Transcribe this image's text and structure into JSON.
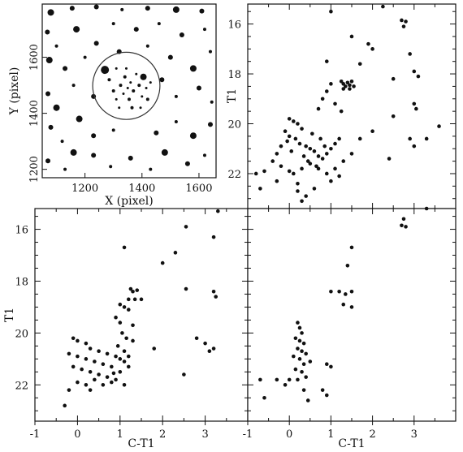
{
  "chart_data": [
    {
      "panel": "field-image",
      "type": "scatter",
      "xlabel": "X (pixel)",
      "ylabel": "Y (pixel)",
      "xlim": [
        1050,
        1660
      ],
      "ylim": [
        1170,
        1790
      ],
      "xticks": [
        "1200",
        "1400",
        "1600"
      ],
      "yticks": [
        "1200",
        "1400",
        "1600"
      ],
      "cluster_circle": {
        "center_x": 1345,
        "center_y": 1498,
        "radius": 118
      },
      "stars": [
        [
          1080,
          1760,
          4
        ],
        [
          1155,
          1775,
          3
        ],
        [
          1240,
          1780,
          3
        ],
        [
          1330,
          1770,
          2
        ],
        [
          1420,
          1775,
          3
        ],
        [
          1520,
          1770,
          4
        ],
        [
          1610,
          1765,
          3
        ],
        [
          1068,
          1690,
          3
        ],
        [
          1100,
          1640,
          2
        ],
        [
          1170,
          1700,
          4
        ],
        [
          1240,
          1650,
          3
        ],
        [
          1300,
          1720,
          2
        ],
        [
          1380,
          1700,
          3
        ],
        [
          1460,
          1720,
          2
        ],
        [
          1540,
          1680,
          3
        ],
        [
          1620,
          1700,
          2
        ],
        [
          1075,
          1590,
          4
        ],
        [
          1130,
          1560,
          3
        ],
        [
          1200,
          1600,
          2
        ],
        [
          1320,
          1620,
          3
        ],
        [
          1420,
          1640,
          2
        ],
        [
          1500,
          1600,
          3
        ],
        [
          1580,
          1560,
          4
        ],
        [
          1640,
          1620,
          2
        ],
        [
          1070,
          1470,
          3
        ],
        [
          1100,
          1420,
          4
        ],
        [
          1160,
          1500,
          2
        ],
        [
          1230,
          1460,
          3
        ],
        [
          1270,
          1555,
          5
        ],
        [
          1470,
          1520,
          3
        ],
        [
          1520,
          1460,
          2
        ],
        [
          1600,
          1490,
          3
        ],
        [
          1645,
          1440,
          2
        ],
        [
          1080,
          1350,
          3
        ],
        [
          1120,
          1300,
          2
        ],
        [
          1180,
          1380,
          4
        ],
        [
          1230,
          1320,
          3
        ],
        [
          1300,
          1340,
          2
        ],
        [
          1450,
          1330,
          3
        ],
        [
          1520,
          1370,
          2
        ],
        [
          1580,
          1320,
          4
        ],
        [
          1640,
          1360,
          3
        ],
        [
          1070,
          1230,
          3
        ],
        [
          1130,
          1200,
          2
        ],
        [
          1160,
          1260,
          4
        ],
        [
          1230,
          1250,
          3
        ],
        [
          1290,
          1210,
          2
        ],
        [
          1360,
          1240,
          3
        ],
        [
          1430,
          1200,
          2
        ],
        [
          1480,
          1260,
          4
        ],
        [
          1560,
          1220,
          3
        ],
        [
          1620,
          1250,
          2
        ],
        [
          1285,
          1520,
          2
        ],
        [
          1300,
          1480,
          2
        ],
        [
          1310,
          1450,
          1.5
        ],
        [
          1325,
          1500,
          2
        ],
        [
          1335,
          1470,
          1.5
        ],
        [
          1340,
          1530,
          2
        ],
        [
          1350,
          1490,
          1.5
        ],
        [
          1355,
          1450,
          2
        ],
        [
          1360,
          1510,
          1.5
        ],
        [
          1370,
          1480,
          2
        ],
        [
          1380,
          1540,
          1.5
        ],
        [
          1390,
          1500,
          2
        ],
        [
          1400,
          1460,
          1.5
        ],
        [
          1405,
          1530,
          4
        ],
        [
          1415,
          1490,
          1.5
        ],
        [
          1420,
          1450,
          2
        ],
        [
          1430,
          1510,
          1.5
        ],
        [
          1320,
          1420,
          1.5
        ],
        [
          1365,
          1420,
          2
        ],
        [
          1395,
          1420,
          1.5
        ],
        [
          1345,
          1560,
          1.5
        ],
        [
          1310,
          1560,
          1.5
        ]
      ]
    },
    {
      "panel": "cmd-full",
      "type": "scatter",
      "xlim": [
        -1,
        4
      ],
      "ylim": [
        23.4,
        15.2
      ],
      "xlabel": "",
      "ylabel": "T1",
      "yticks": [
        "16",
        "18",
        "20",
        "22"
      ],
      "points": [
        [
          2.25,
          15.3
        ],
        [
          1.0,
          15.5
        ],
        [
          2.8,
          15.9
        ],
        [
          2.7,
          15.85
        ],
        [
          2.75,
          16.1
        ],
        [
          1.5,
          16.5
        ],
        [
          1.9,
          16.8
        ],
        [
          2.0,
          17.0
        ],
        [
          2.9,
          17.2
        ],
        [
          0.9,
          17.5
        ],
        [
          1.7,
          17.6
        ],
        [
          3.0,
          17.9
        ],
        [
          3.1,
          18.1
        ],
        [
          2.5,
          18.2
        ],
        [
          1.25,
          18.3
        ],
        [
          1.3,
          18.4
        ],
        [
          1.35,
          18.5
        ],
        [
          1.4,
          18.35
        ],
        [
          1.45,
          18.45
        ],
        [
          1.5,
          18.3
        ],
        [
          1.55,
          18.5
        ],
        [
          1.3,
          18.6
        ],
        [
          1.45,
          18.6
        ],
        [
          1.0,
          18.4
        ],
        [
          0.9,
          18.7
        ],
        [
          0.8,
          19.0
        ],
        [
          1.1,
          19.2
        ],
        [
          0.7,
          19.4
        ],
        [
          1.25,
          19.5
        ],
        [
          3.0,
          19.2
        ],
        [
          3.05,
          19.4
        ],
        [
          2.5,
          19.7
        ],
        [
          3.6,
          20.1
        ],
        [
          0.0,
          19.8
        ],
        [
          0.1,
          19.9
        ],
        [
          0.2,
          20.0
        ],
        [
          0.3,
          20.2
        ],
        [
          -0.1,
          20.3
        ],
        [
          0.0,
          20.5
        ],
        [
          0.15,
          20.6
        ],
        [
          0.25,
          20.8
        ],
        [
          0.4,
          20.9
        ],
        [
          0.5,
          21.0
        ],
        [
          0.6,
          21.1
        ],
        [
          0.7,
          21.3
        ],
        [
          0.8,
          21.4
        ],
        [
          0.9,
          21.2
        ],
        [
          1.0,
          21.0
        ],
        [
          1.1,
          20.8
        ],
        [
          1.2,
          20.6
        ],
        [
          -0.2,
          20.9
        ],
        [
          -0.3,
          21.2
        ],
        [
          -0.4,
          21.5
        ],
        [
          -0.2,
          21.7
        ],
        [
          0.0,
          21.9
        ],
        [
          0.1,
          22.0
        ],
        [
          0.3,
          21.8
        ],
        [
          0.5,
          21.6
        ],
        [
          0.7,
          21.8
        ],
        [
          0.9,
          22.0
        ],
        [
          1.1,
          21.8
        ],
        [
          1.3,
          21.5
        ],
        [
          -0.6,
          21.9
        ],
        [
          -0.8,
          22.0
        ],
        [
          -0.7,
          22.6
        ],
        [
          0.2,
          22.4
        ],
        [
          0.6,
          22.6
        ],
        [
          1.0,
          22.3
        ],
        [
          0.3,
          23.1
        ],
        [
          0.4,
          22.9
        ],
        [
          1.5,
          21.2
        ],
        [
          1.7,
          20.6
        ],
        [
          2.0,
          20.3
        ],
        [
          2.4,
          21.4
        ],
        [
          2.9,
          20.6
        ],
        [
          3.0,
          20.9
        ],
        [
          3.3,
          20.6
        ],
        [
          0.55,
          20.4
        ],
        [
          0.75,
          20.6
        ],
        [
          0.35,
          21.3
        ],
        [
          0.45,
          21.5
        ],
        [
          0.05,
          21.1
        ],
        [
          -0.05,
          20.7
        ],
        [
          0.65,
          21.7
        ],
        [
          0.85,
          20.9
        ],
        [
          1.2,
          22.1
        ],
        [
          0.2,
          22.7
        ],
        [
          -0.3,
          22.3
        ]
      ]
    },
    {
      "panel": "cmd-cluster",
      "type": "scatter",
      "xlim": [
        -1,
        4
      ],
      "ylim": [
        23.4,
        15.2
      ],
      "xlabel": "C-T1",
      "ylabel": "T1",
      "xticks": [
        "-1",
        "0",
        "1",
        "2",
        "3"
      ],
      "yticks": [
        "16",
        "18",
        "20",
        "22"
      ],
      "points": [
        [
          3.3,
          15.3
        ],
        [
          2.55,
          15.9
        ],
        [
          3.2,
          16.3
        ],
        [
          1.1,
          16.7
        ],
        [
          2.3,
          16.9
        ],
        [
          2.0,
          17.3
        ],
        [
          2.55,
          18.3
        ],
        [
          3.2,
          18.4
        ],
        [
          3.25,
          18.6
        ],
        [
          1.25,
          18.3
        ],
        [
          1.3,
          18.4
        ],
        [
          1.4,
          18.35
        ],
        [
          1.5,
          18.7
        ],
        [
          1.35,
          18.7
        ],
        [
          1.2,
          18.7
        ],
        [
          1.0,
          18.9
        ],
        [
          1.1,
          19.0
        ],
        [
          1.2,
          19.1
        ],
        [
          0.9,
          19.4
        ],
        [
          1.0,
          19.6
        ],
        [
          1.3,
          19.7
        ],
        [
          1.05,
          20.0
        ],
        [
          1.15,
          20.2
        ],
        [
          1.3,
          20.3
        ],
        [
          0.95,
          20.5
        ],
        [
          1.1,
          20.7
        ],
        [
          1.2,
          20.9
        ],
        [
          -0.1,
          20.2
        ],
        [
          0.0,
          20.3
        ],
        [
          0.2,
          20.4
        ],
        [
          0.3,
          20.6
        ],
        [
          0.5,
          20.7
        ],
        [
          0.7,
          20.8
        ],
        [
          0.9,
          20.9
        ],
        [
          1.0,
          21.0
        ],
        [
          1.1,
          21.1
        ],
        [
          1.2,
          21.3
        ],
        [
          -0.2,
          20.8
        ],
        [
          0.0,
          20.9
        ],
        [
          0.2,
          21.0
        ],
        [
          0.4,
          21.1
        ],
        [
          0.6,
          21.2
        ],
        [
          0.8,
          21.3
        ],
        [
          1.0,
          21.5
        ],
        [
          -0.1,
          21.3
        ],
        [
          0.1,
          21.4
        ],
        [
          0.3,
          21.5
        ],
        [
          0.5,
          21.6
        ],
        [
          0.7,
          21.7
        ],
        [
          0.9,
          21.8
        ],
        [
          0.0,
          21.9
        ],
        [
          0.2,
          22.0
        ],
        [
          0.4,
          21.8
        ],
        [
          0.6,
          22.0
        ],
        [
          0.8,
          21.9
        ],
        [
          -0.2,
          22.2
        ],
        [
          0.3,
          22.2
        ],
        [
          1.1,
          22.0
        ],
        [
          -0.3,
          22.8
        ],
        [
          0.85,
          21.55
        ],
        [
          2.8,
          20.2
        ],
        [
          3.0,
          20.4
        ],
        [
          3.1,
          20.7
        ],
        [
          3.2,
          20.6
        ],
        [
          2.5,
          21.6
        ],
        [
          1.8,
          20.6
        ]
      ]
    },
    {
      "panel": "cmd-field",
      "type": "scatter",
      "xlim": [
        -1,
        4
      ],
      "ylim": [
        23.4,
        15.2
      ],
      "xlabel": "C-T1",
      "ylabel": "",
      "xticks": [
        "-1",
        "0",
        "1",
        "2",
        "3"
      ],
      "points": [
        [
          2.75,
          15.6
        ],
        [
          2.7,
          15.85
        ],
        [
          2.8,
          15.9
        ],
        [
          3.3,
          15.2
        ],
        [
          1.5,
          16.7
        ],
        [
          1.4,
          17.4
        ],
        [
          1.5,
          18.4
        ],
        [
          1.35,
          18.5
        ],
        [
          1.2,
          18.4
        ],
        [
          1.0,
          18.4
        ],
        [
          1.5,
          19.0
        ],
        [
          1.3,
          18.9
        ],
        [
          0.2,
          19.6
        ],
        [
          0.25,
          19.8
        ],
        [
          0.3,
          20.0
        ],
        [
          0.15,
          20.2
        ],
        [
          0.25,
          20.3
        ],
        [
          0.35,
          20.4
        ],
        [
          0.2,
          20.6
        ],
        [
          0.3,
          20.7
        ],
        [
          0.4,
          20.8
        ],
        [
          0.1,
          20.9
        ],
        [
          0.25,
          21.0
        ],
        [
          0.35,
          21.2
        ],
        [
          0.5,
          21.1
        ],
        [
          0.15,
          21.4
        ],
        [
          0.3,
          21.5
        ],
        [
          0.4,
          21.7
        ],
        [
          0.2,
          21.8
        ],
        [
          0.0,
          21.8
        ],
        [
          -0.3,
          21.8
        ],
        [
          -0.7,
          21.8
        ],
        [
          -0.1,
          22.0
        ],
        [
          0.35,
          22.2
        ],
        [
          -0.6,
          22.5
        ],
        [
          0.45,
          22.6
        ],
        [
          0.8,
          22.2
        ],
        [
          0.9,
          22.4
        ],
        [
          0.9,
          21.2
        ],
        [
          1.0,
          21.3
        ]
      ]
    }
  ]
}
